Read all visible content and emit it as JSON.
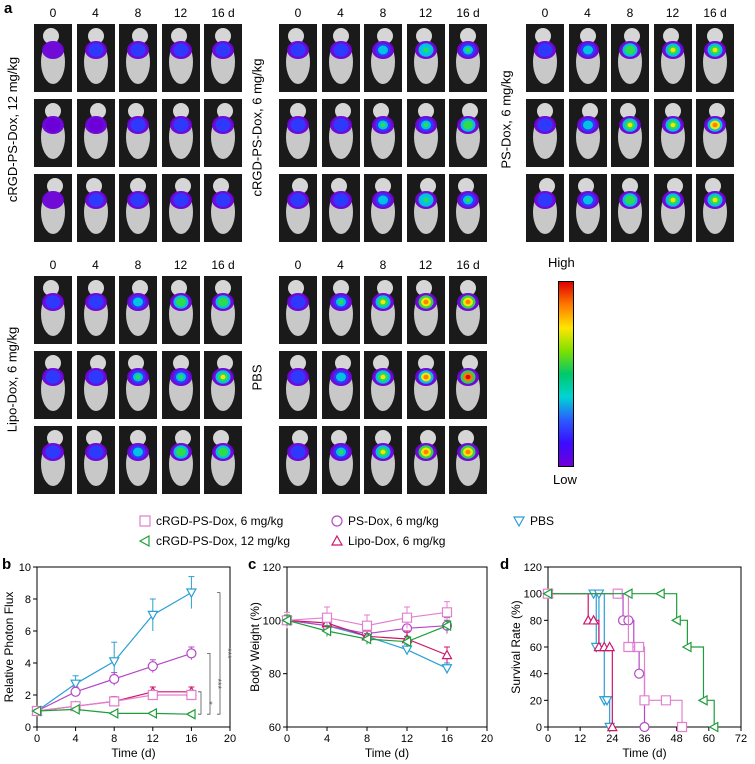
{
  "panel_a": {
    "label": "a",
    "days": [
      "0",
      "4",
      "8",
      "12",
      "16 d"
    ],
    "groups": [
      {
        "label": "cRGD-PS-Dox, 12 mg/kg",
        "intensity": [
          0.15,
          0.18,
          0.2,
          0.22,
          0.22
        ]
      },
      {
        "label": "cRGD-PS-Dox, 6 mg/kg",
        "intensity": [
          0.2,
          0.3,
          0.45,
          0.5,
          0.55
        ]
      },
      {
        "label": "PS-Dox, 6 mg/kg",
        "intensity": [
          0.2,
          0.35,
          0.6,
          0.7,
          0.8
        ]
      },
      {
        "label": "Lipo-Dox, 6 mg/kg",
        "intensity": [
          0.2,
          0.3,
          0.45,
          0.55,
          0.6
        ]
      },
      {
        "label": "PBS",
        "intensity": [
          0.25,
          0.45,
          0.7,
          0.9,
          1.0
        ]
      }
    ],
    "colorbar": {
      "high": "High",
      "low": "Low"
    }
  },
  "legend": [
    {
      "name": "cRGD-PS-Dox, 6 mg/kg",
      "marker": "square",
      "color": "#e37fcf"
    },
    {
      "name": "PS-Dox, 6 mg/kg",
      "marker": "circle",
      "color": "#b548c6"
    },
    {
      "name": "PBS",
      "marker": "triangle-down",
      "color": "#2b9fd4"
    },
    {
      "name": "cRGD-PS-Dox, 12 mg/kg",
      "marker": "triangle-left",
      "color": "#1e9e3a"
    },
    {
      "name": "Lipo-Dox, 6 mg/kg",
      "marker": "triangle-up",
      "color": "#d1156a"
    }
  ],
  "chart_data": [
    {
      "id": "b",
      "type": "line",
      "xlabel": "Time (d)",
      "ylabel": "Relative Photon Flux",
      "xlim": [
        0,
        20
      ],
      "ylim": [
        0,
        10
      ],
      "xticks": [
        0,
        4,
        8,
        12,
        16,
        20
      ],
      "yticks": [
        0,
        2,
        4,
        6,
        8,
        10
      ],
      "x": [
        0,
        4,
        8,
        12,
        16
      ],
      "series": [
        {
          "name": "PBS",
          "values": [
            1.0,
            2.7,
            4.1,
            7.0,
            8.4
          ],
          "err": [
            0.1,
            0.5,
            1.2,
            1.0,
            1.0
          ]
        },
        {
          "name": "PS-Dox, 6 mg/kg",
          "values": [
            1.0,
            2.2,
            3.0,
            3.8,
            4.6
          ],
          "err": [
            0.1,
            0.3,
            0.4,
            0.4,
            0.4
          ]
        },
        {
          "name": "Lipo-Dox, 6 mg/kg",
          "values": [
            1.0,
            1.3,
            1.6,
            2.2,
            2.2
          ],
          "err": [
            0.1,
            0.2,
            0.3,
            0.3,
            0.3
          ]
        },
        {
          "name": "cRGD-PS-Dox, 6 mg/kg",
          "values": [
            1.0,
            1.3,
            1.6,
            2.0,
            2.0
          ],
          "err": [
            0.1,
            0.2,
            0.2,
            0.2,
            0.3
          ]
        },
        {
          "name": "cRGD-PS-Dox, 12 mg/kg",
          "values": [
            1.0,
            1.1,
            0.85,
            0.85,
            0.8
          ],
          "err": [
            0.1,
            0.1,
            0.1,
            0.1,
            0.1
          ]
        }
      ],
      "annotations": [
        "***",
        "***",
        "*"
      ]
    },
    {
      "id": "c",
      "type": "line",
      "xlabel": "Time (d)",
      "ylabel": "Body Weight (%)",
      "xlim": [
        0,
        20
      ],
      "ylim": [
        60,
        120
      ],
      "xticks": [
        0,
        4,
        8,
        12,
        16,
        20
      ],
      "yticks": [
        60,
        80,
        100,
        120
      ],
      "x": [
        0,
        4,
        8,
        12,
        16
      ],
      "series": [
        {
          "name": "PBS",
          "values": [
            100,
            98,
            94,
            89,
            82
          ],
          "err": [
            2,
            2,
            2,
            2,
            2
          ]
        },
        {
          "name": "PS-Dox, 6 mg/kg",
          "values": [
            100,
            98,
            95,
            97,
            98
          ],
          "err": [
            2,
            3,
            3,
            3,
            3
          ]
        },
        {
          "name": "Lipo-Dox, 6 mg/kg",
          "values": [
            100,
            99,
            94,
            93,
            87
          ],
          "err": [
            2,
            2,
            2,
            3,
            3
          ]
        },
        {
          "name": "cRGD-PS-Dox, 6 mg/kg",
          "values": [
            100,
            101,
            98,
            101,
            103
          ],
          "err": [
            3,
            4,
            4,
            4,
            4
          ]
        },
        {
          "name": "cRGD-PS-Dox, 12 mg/kg",
          "values": [
            100,
            96,
            93,
            92,
            98
          ],
          "err": [
            2,
            2,
            2,
            2,
            2
          ]
        }
      ]
    },
    {
      "id": "d",
      "type": "line",
      "xlabel": "Time (d)",
      "ylabel": "Survival Rate (%)",
      "xlim": [
        0,
        72
      ],
      "ylim": [
        0,
        120
      ],
      "xticks": [
        0,
        12,
        24,
        36,
        48,
        60,
        72
      ],
      "yticks": [
        0,
        20,
        40,
        60,
        80,
        100,
        120
      ],
      "step": true,
      "series": [
        {
          "name": "PBS",
          "x": [
            0,
            17,
            18,
            19,
            21,
            22,
            23
          ],
          "values": [
            100,
            100,
            60,
            100,
            20,
            20,
            0
          ]
        },
        {
          "name": "PS-Dox, 6 mg/kg",
          "x": [
            0,
            26,
            28,
            30,
            32,
            34,
            36
          ],
          "values": [
            100,
            100,
            80,
            80,
            60,
            40,
            0
          ]
        },
        {
          "name": "Lipo-Dox, 6 mg/kg",
          "x": [
            0,
            15,
            17,
            19,
            21,
            23,
            24
          ],
          "values": [
            100,
            80,
            80,
            60,
            60,
            60,
            0
          ]
        },
        {
          "name": "cRGD-PS-Dox, 6 mg/kg",
          "x": [
            0,
            26,
            30,
            34,
            36,
            44,
            50
          ],
          "values": [
            100,
            100,
            60,
            60,
            20,
            20,
            0
          ]
        },
        {
          "name": "cRGD-PS-Dox, 12 mg/kg",
          "x": [
            0,
            30,
            42,
            48,
            52,
            58,
            62
          ],
          "values": [
            100,
            100,
            100,
            80,
            60,
            20,
            0
          ]
        }
      ]
    }
  ]
}
